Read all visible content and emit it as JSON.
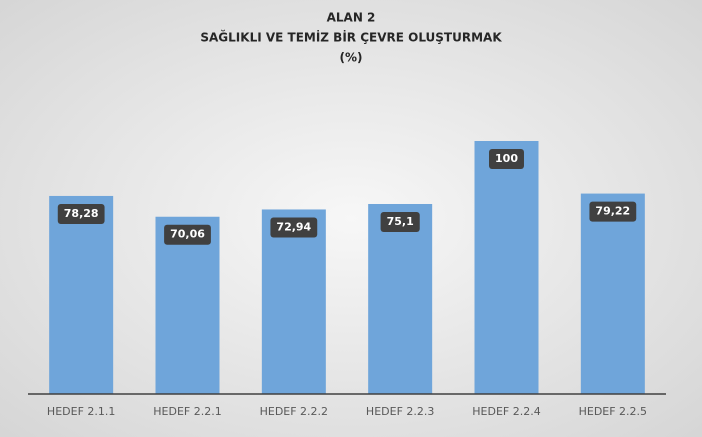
{
  "chart_data": {
    "type": "bar",
    "title": [
      "ALAN 2",
      "SAĞLIKLI VE TEMİZ BİR ÇEVRE OLUŞTURMAK",
      "(%)"
    ],
    "categories": [
      "HEDEF 2.1.1",
      "HEDEF 2.2.1",
      "HEDEF 2.2.2",
      "HEDEF 2.2.3",
      "HEDEF 2.2.4",
      "HEDEF 2.2.5"
    ],
    "values": [
      78.28,
      70.06,
      72.94,
      75.1,
      100,
      79.22
    ],
    "value_labels": [
      "78,28",
      "70,06",
      "72,94",
      "75,1",
      "100",
      "79,22"
    ],
    "color": "#6fa5da",
    "ylim": [
      0,
      100
    ]
  }
}
